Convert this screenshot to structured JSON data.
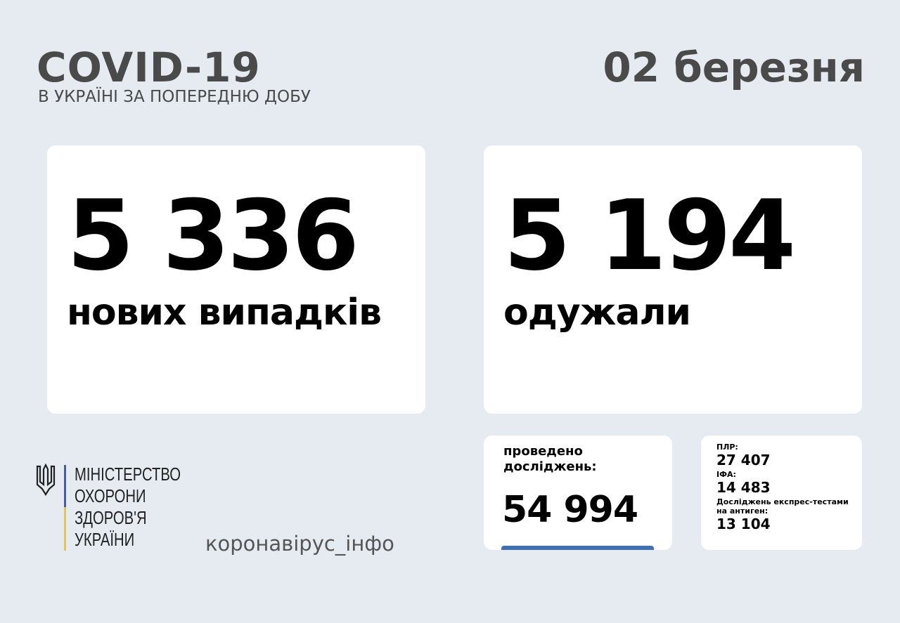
{
  "header": {
    "title": "COVID-19",
    "subtitle": "В УКРАЇНІ ЗА ПОПЕРЕДНЮ ДОБУ",
    "date": "02 березня"
  },
  "cases": {
    "value": "5 336",
    "label": "нових випадків"
  },
  "recovered": {
    "value": "5 194",
    "label": "одужали"
  },
  "tests": {
    "label_line1": "проведено",
    "label_line2": "досліджень:",
    "value": "54 994"
  },
  "breakdown": [
    {
      "label": "ПЛР:",
      "value": "27 407"
    },
    {
      "label": "ІФА:",
      "value": "14 483"
    },
    {
      "label": "Досліджень експрес-тестами на антиген:",
      "value": "13 104"
    }
  ],
  "ministry": {
    "lines": [
      "МІНІСТЕРСТВО",
      "ОХОРОНИ",
      "ЗДОРОВ'Я",
      "УКРАЇНИ"
    ],
    "icon": "trident-icon"
  },
  "footer": {
    "site": "коронавірус_інфо"
  },
  "colors": {
    "background": "#e5ebf1",
    "blue": "#3f5db5",
    "yellow": "#f2c62a"
  }
}
